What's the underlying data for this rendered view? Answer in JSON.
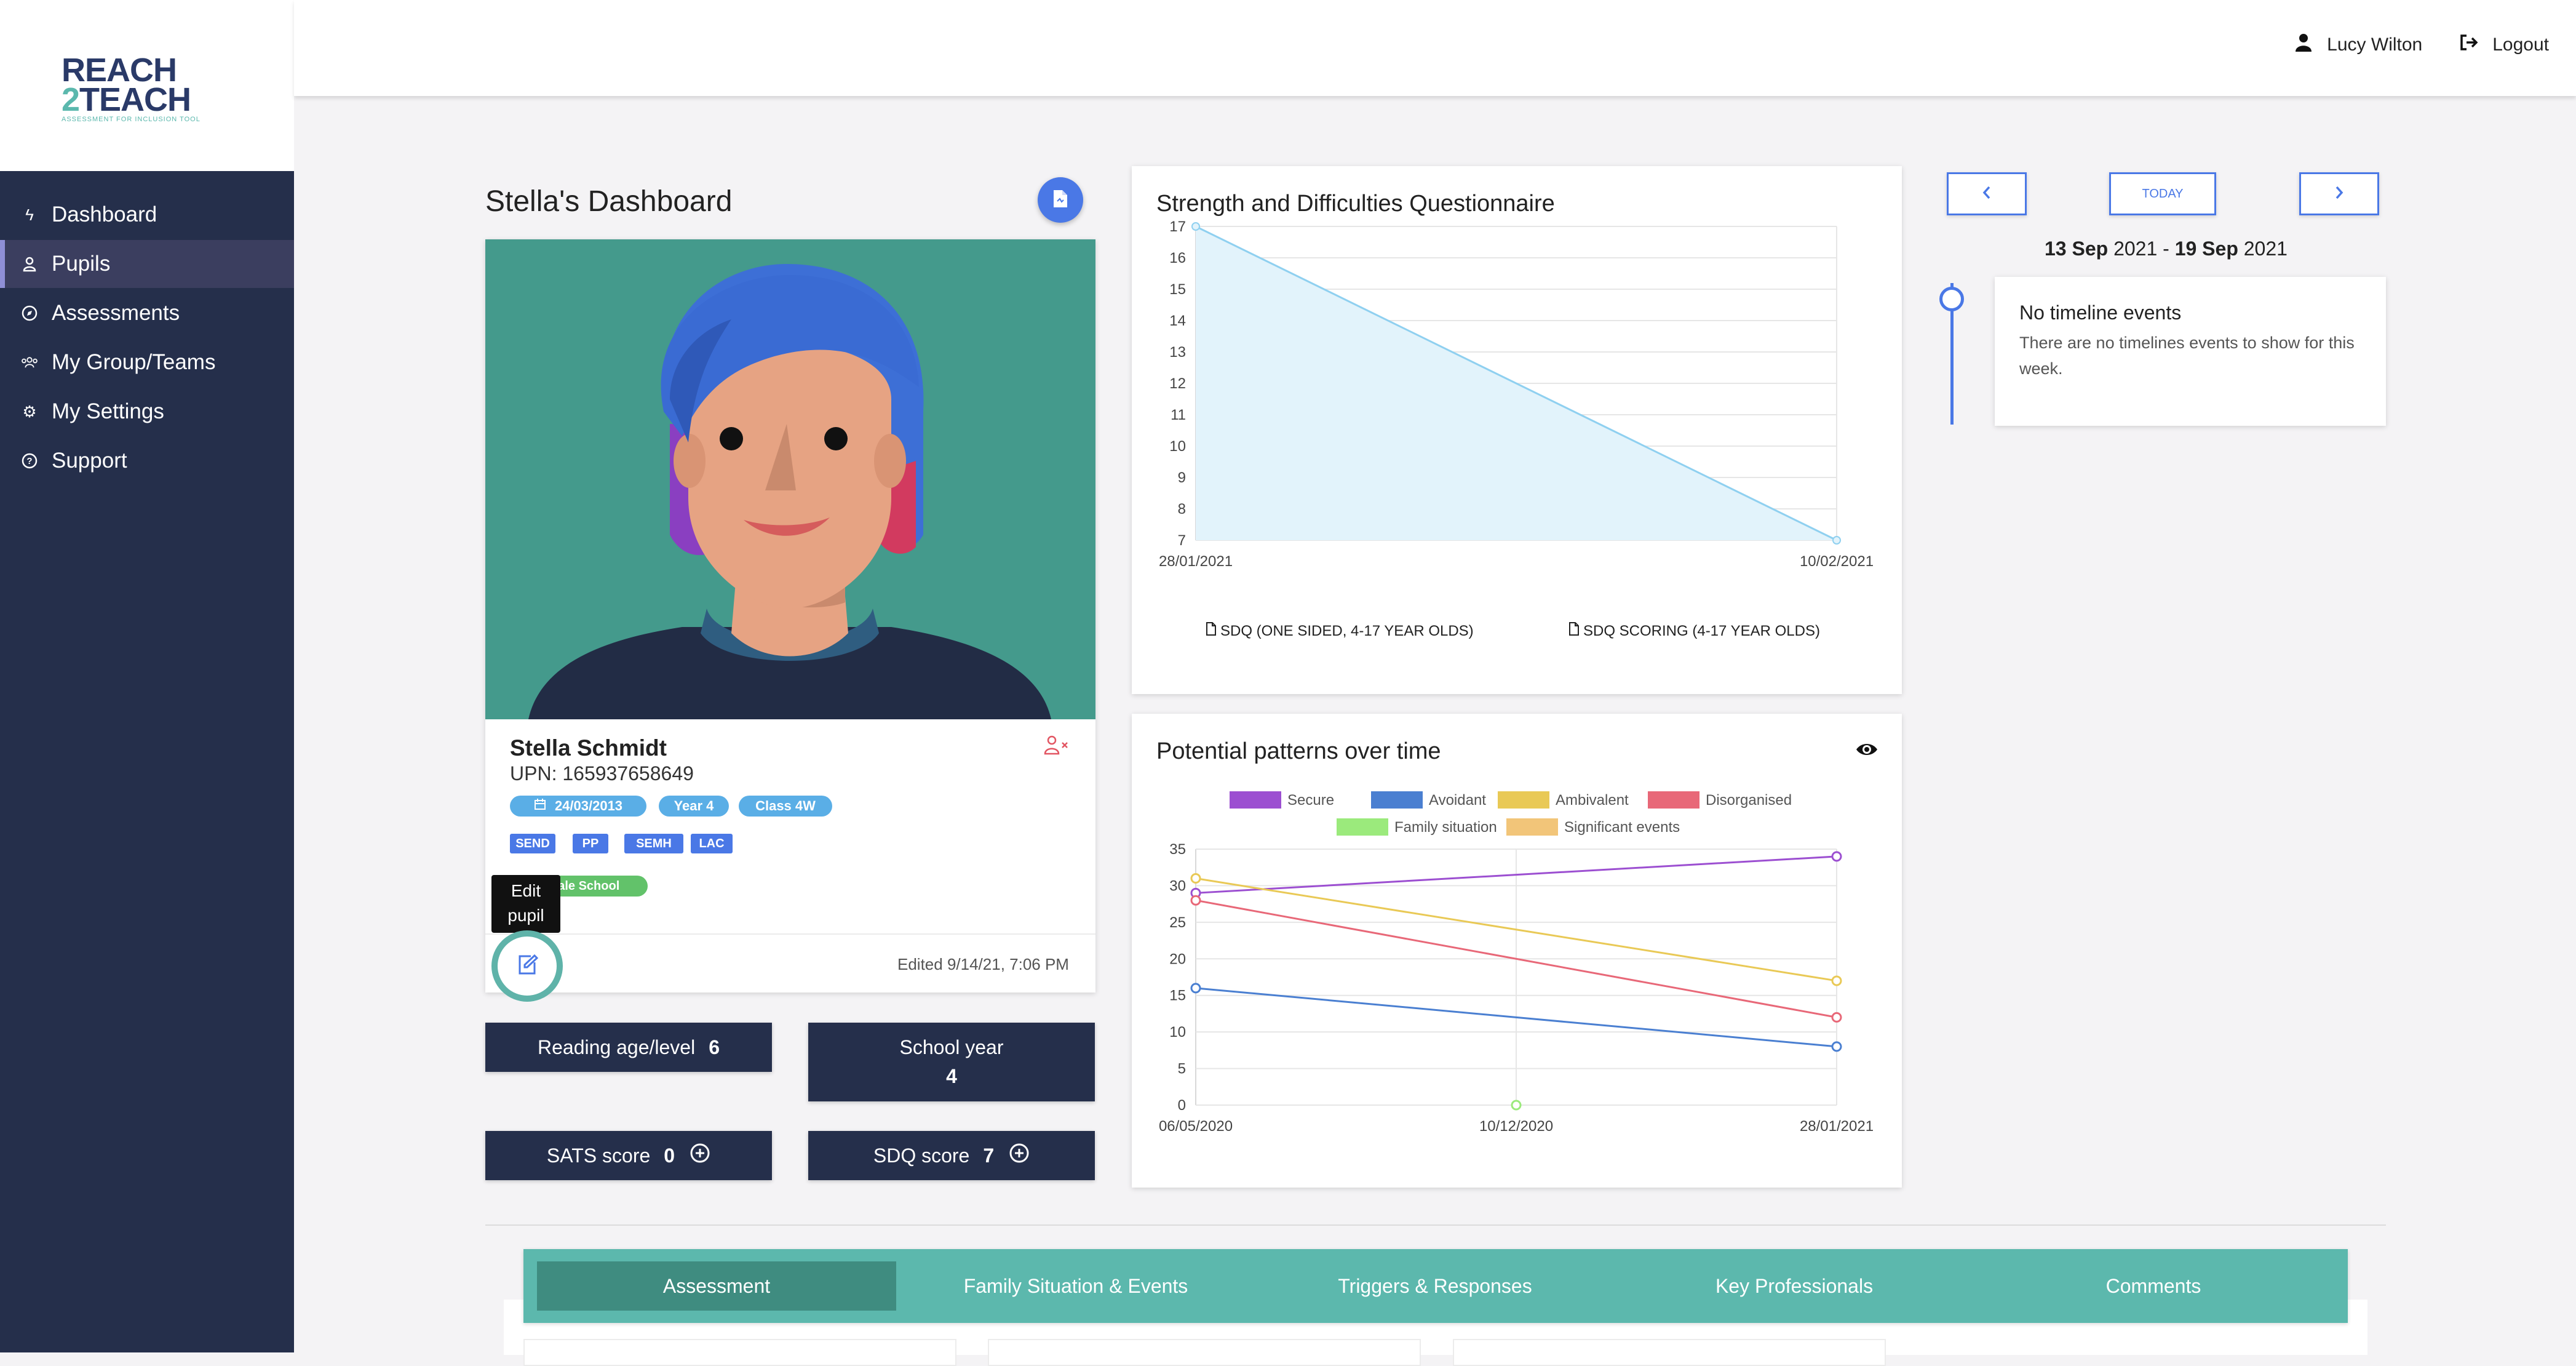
{
  "brand": {
    "line1": "REACH",
    "line2_accent": "2",
    "line2_rest": "TEACH",
    "tagline": "ASSESSMENT FOR INCLUSION TOOL"
  },
  "sidebar": {
    "items": [
      {
        "label": "Dashboard",
        "icon": "bolt-icon"
      },
      {
        "label": "Pupils",
        "icon": "user-icon",
        "active": true
      },
      {
        "label": "Assessments",
        "icon": "compass-icon"
      },
      {
        "label": "My Group/Teams",
        "icon": "group-icon"
      },
      {
        "label": "My Settings",
        "icon": "gear-icon"
      },
      {
        "label": "Support",
        "icon": "help-icon"
      }
    ]
  },
  "header": {
    "user_name": "Lucy Wilton",
    "logout_label": "Logout"
  },
  "dashboard": {
    "title": "Stella's Dashboard"
  },
  "pupil": {
    "name": "Stella Schmidt",
    "upn": "UPN: 165937658649",
    "dob": "24/03/2013",
    "year": "Year 4",
    "class": "Class 4W",
    "tags": [
      "SEND",
      "PP",
      "SEMH",
      "LAC"
    ],
    "school": "dale School",
    "edit_tooltip_line1": "Edit",
    "edit_tooltip_line2": "pupil",
    "edited": "Edited 9/14/21, 7:06 PM"
  },
  "stats": {
    "reading_label": "Reading age/level",
    "reading_value": "6",
    "school_year_label": "School year",
    "school_year_value": "4",
    "sats_label": "SATS score",
    "sats_value": "0",
    "sdq_label": "SDQ score",
    "sdq_value": "7"
  },
  "chart_data": [
    {
      "type": "area",
      "title": "Strength and Difficulties Questionnaire",
      "x": [
        "28/01/2021",
        "10/02/2021"
      ],
      "series": [
        {
          "values": [
            17,
            7
          ]
        }
      ],
      "ylim": [
        7,
        17
      ],
      "yticks": [
        7,
        8,
        9,
        10,
        11,
        12,
        13,
        14,
        15,
        16,
        17
      ],
      "grid": true,
      "color": "#8fd0f0",
      "links": [
        "SDQ (ONE SIDED, 4-17 YEAR OLDS)",
        "SDQ SCORING (4-17 YEAR OLDS)"
      ]
    },
    {
      "type": "line",
      "title": "Potential patterns over time",
      "x": [
        "06/05/2020",
        "10/12/2020",
        "28/01/2021"
      ],
      "ylim": [
        0,
        35
      ],
      "yticks": [
        0,
        5,
        10,
        15,
        20,
        25,
        30,
        35
      ],
      "grid": true,
      "legend_position": "top",
      "series": [
        {
          "name": "Secure",
          "color": "#9c4fd1",
          "points": [
            [
              0,
              29
            ],
            [
              2,
              34
            ]
          ]
        },
        {
          "name": "Avoidant",
          "color": "#4a7fd1",
          "points": [
            [
              0,
              16
            ],
            [
              2,
              8
            ]
          ]
        },
        {
          "name": "Ambivalent",
          "color": "#e9c956",
          "points": [
            [
              0,
              31
            ],
            [
              2,
              17
            ]
          ]
        },
        {
          "name": "Disorganised",
          "color": "#e86878",
          "points": [
            [
              0,
              28
            ],
            [
              2,
              12
            ]
          ]
        },
        {
          "name": "Family situation",
          "color": "#9bea7c",
          "points": [
            [
              1,
              0
            ]
          ]
        },
        {
          "name": "Significant events",
          "color": "#f2c579",
          "points": []
        }
      ]
    }
  ],
  "calendar": {
    "today_label": "TODAY",
    "week_start": "13 Sep",
    "week_start_year": "2021",
    "week_end": "19 Sep",
    "week_end_year": "2021",
    "separator": "-"
  },
  "timeline": {
    "title": "No timeline events",
    "message": "There are no timelines events to show for this week."
  },
  "tabs": [
    "Assessment",
    "Family Situation & Events",
    "Triggers & Responses",
    "Key Professionals",
    "Comments"
  ]
}
